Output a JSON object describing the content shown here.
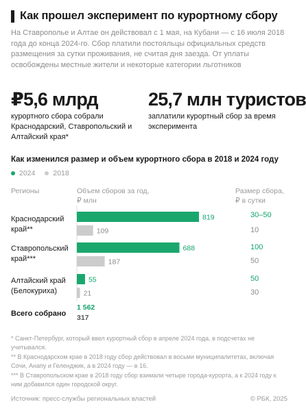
{
  "header": {
    "title": "Как прошел эксперимент по курортному сбору",
    "subtitle": "На Ставрополье и Алтае он действовал с 1 мая, на Кубани — с 16 июля 2018 года до конца 2024-го. Сбор платили постояльцы официальных средств размещения за сутки проживания, не считая дня заезда. От уплаты освобождены местные жители и некоторые категории льготников"
  },
  "stats": [
    {
      "big": "₽5,6 млрд",
      "text": "курортного сбора собрали Краснодарский, Ставропольский и Алтайский края*"
    },
    {
      "big": "25,7 млн туристов",
      "text": "заплатили курортный сбор за время эксперимента"
    }
  ],
  "columns": {
    "regions": "Регионы",
    "volume": "Объем сборов за год, ₽ млн",
    "rate": "Размер сбора, ₽ в сутки"
  },
  "rows": [
    {
      "region": "Краснодарский край**",
      "rate_2024": "30–50",
      "rate_2018": "10"
    },
    {
      "region": "Ставропольский край***",
      "rate_2024": "100",
      "rate_2018": "50"
    },
    {
      "region": "Алтайский край (Белокуриха)",
      "rate_2024": "50",
      "rate_2018": "30"
    }
  ],
  "total": {
    "label": "Всего собрано",
    "value_2024": "1 562",
    "value_2018": "317"
  },
  "chart_data": {
    "type": "bar",
    "title": "Как изменился размер и объем курортного сбора в 2018 и 2024 году",
    "categories": [
      "Краснодарский край**",
      "Ставропольский край***",
      "Алтайский край (Белокуриха)"
    ],
    "series": [
      {
        "name": "2024",
        "values": [
          819,
          688,
          55
        ]
      },
      {
        "name": "2018",
        "values": [
          109,
          187,
          21
        ]
      }
    ],
    "ylabel": "Объем сборов за год, ₽ млн",
    "colors": {
      "2024": "#1aa76e",
      "2018": "#cccccc"
    }
  },
  "footnotes": [
    "* Санкт-Петербург, который ввел курортный сбор в апреле 2024 года, в подсчетах не учитывался.",
    "** В Краснодарском крае в 2018 году сбор действовал в восьми муниципалитетах, включая Сочи, Анапу и Геленджик, а в 2024 году — в 16.",
    "*** В Ставропольском крае в 2018 году сбор взимали четыре города-курорта, а к 2024 году к ним добавился один городской округ."
  ],
  "source": "Источник: пресс-службы региональных властей",
  "copyright": "© РБК, 2025"
}
